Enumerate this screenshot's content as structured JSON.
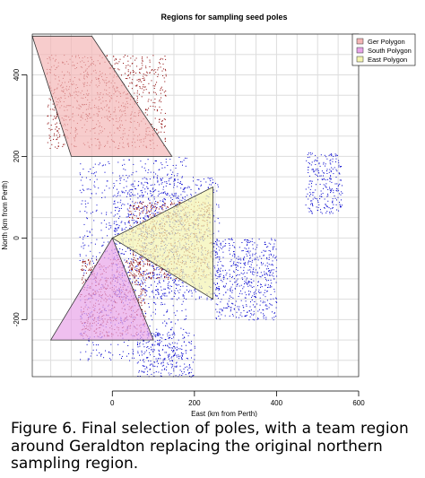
{
  "chart_data": {
    "type": "scatter",
    "title": "Regions for sampling seed poles",
    "xlabel": "East (km from Perth)",
    "ylabel": "North (km from Perth)",
    "xlim": [
      -195,
      600
    ],
    "ylim": [
      -340,
      500
    ],
    "x_ticks": [
      "0",
      "200",
      "400",
      "600"
    ],
    "y_ticks": [
      "-200",
      "0",
      "200",
      "400"
    ],
    "grid": true,
    "legend_position": "top-right",
    "polygons": [
      {
        "name": "Ger Polygon",
        "fill": "#f4b6b6",
        "vertices": [
          [
            -195,
            495
          ],
          [
            -50,
            495
          ],
          [
            145,
            200
          ],
          [
            -100,
            200
          ]
        ]
      },
      {
        "name": "South Polygon",
        "fill": "#e8a4e8",
        "vertices": [
          [
            0,
            0
          ],
          [
            100,
            -250
          ],
          [
            -150,
            -250
          ]
        ]
      },
      {
        "name": "East Polygon",
        "fill": "#f4f4b0",
        "vertices": [
          [
            0,
            0
          ],
          [
            245,
            125
          ],
          [
            245,
            -150
          ]
        ]
      }
    ],
    "point_series": [
      {
        "color": "#0000cd",
        "regions": [
          {
            "x": [
              -80,
              180
            ],
            "y": [
              -300,
              200
            ]
          },
          {
            "x": [
              0,
              260
            ],
            "y": [
              -150,
              150
            ]
          },
          {
            "x": [
              60,
              200
            ],
            "y": [
              -340,
              -230
            ]
          },
          {
            "x": [
              250,
              400
            ],
            "y": [
              -200,
              0
            ]
          },
          {
            "x": [
              470,
              560
            ],
            "y": [
              60,
              210
            ]
          }
        ]
      },
      {
        "color": "#8b0000",
        "regions": [
          {
            "x": [
              -160,
              130
            ],
            "y": [
              220,
              450
            ]
          },
          {
            "x": [
              -80,
              80
            ],
            "y": [
              -240,
              -50
            ]
          },
          {
            "x": [
              40,
              240
            ],
            "y": [
              -100,
              90
            ]
          }
        ]
      }
    ]
  },
  "caption": "Figure 6.  Final selection of poles, with a team region around Geraldton replacing the original northern sampling region."
}
